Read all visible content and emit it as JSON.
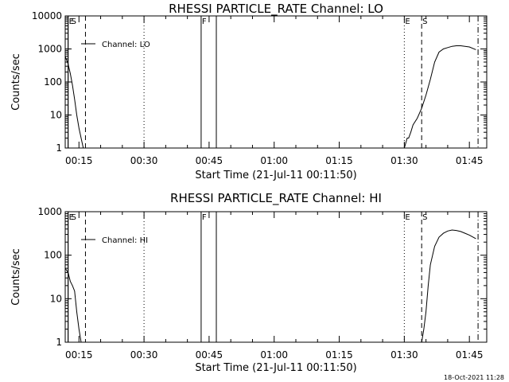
{
  "chart_data": [
    {
      "type": "line",
      "title": "RHESSI PARTICLE_RATE Channel: LO",
      "xlabel": "Start Time (21-Jul-11 00:11:50)",
      "ylabel": "Counts/sec",
      "yscale": "log",
      "xlim": [
        "00:11:50",
        "01:49:00"
      ],
      "ylim": [
        1,
        10000
      ],
      "x_ticks": [
        "00:15",
        "00:30",
        "00:45",
        "01:00",
        "01:15",
        "01:30",
        "01:45"
      ],
      "y_ticks": [
        "1",
        "10",
        "100",
        "1000",
        "10000"
      ],
      "legend": {
        "label": "Channel: LO",
        "placement": "top-left"
      },
      "series": [
        {
          "name": "Channel: LO",
          "x": [
            "00:11:50",
            "00:12:30",
            "00:13:00",
            "00:13:30",
            "00:14:00",
            "00:14:30",
            "00:15:00",
            "00:15:30",
            "00:16:00",
            "01:30:00",
            "01:30:40",
            "01:31:00",
            "01:31:30",
            "01:32:00",
            "01:33:00",
            "01:34:00",
            "01:35:00",
            "01:36:00",
            "01:37:00",
            "01:38:00",
            "01:39:00",
            "01:40:00",
            "01:41:00",
            "01:42:00",
            "01:43:00",
            "01:44:00",
            "01:45:00",
            "01:46:30"
          ],
          "y": [
            600,
            350,
            180,
            80,
            30,
            10,
            4,
            2,
            1,
            1,
            2,
            2,
            3,
            5,
            8,
            16,
            40,
            120,
            400,
            800,
            1000,
            1100,
            1200,
            1250,
            1250,
            1200,
            1150,
            950
          ]
        }
      ],
      "markers": [
        {
          "label": "E",
          "x": "00:12:30",
          "style": "solid"
        },
        {
          "label": "S",
          "x": "00:12:30",
          "style": "solid"
        },
        {
          "label": "",
          "x": "00:16:30",
          "style": "dashed"
        },
        {
          "label": "",
          "x": "00:30:00",
          "style": "dotted"
        },
        {
          "label": "F",
          "x": "00:43:10",
          "style": "solid"
        },
        {
          "label": "",
          "x": "00:46:40",
          "style": "solid"
        },
        {
          "label": "E",
          "x": "01:30:00",
          "style": "dotted"
        },
        {
          "label": "S",
          "x": "01:34:00",
          "style": "dashed"
        },
        {
          "label": "",
          "x": "01:47:00",
          "style": "dashdot"
        }
      ]
    },
    {
      "type": "line",
      "title": "RHESSI PARTICLE_RATE Channel: HI",
      "xlabel": "Start Time (21-Jul-11 00:11:50)",
      "ylabel": "Counts/sec",
      "yscale": "log",
      "xlim": [
        "00:11:50",
        "01:49:00"
      ],
      "ylim": [
        1,
        1000
      ],
      "x_ticks": [
        "00:15",
        "00:30",
        "00:45",
        "01:00",
        "01:15",
        "01:30",
        "01:45"
      ],
      "y_ticks": [
        "1",
        "10",
        "100",
        "1000"
      ],
      "legend": {
        "label": "Channel: HI",
        "placement": "top-left"
      },
      "series": [
        {
          "name": "Channel: HI",
          "x": [
            "00:11:50",
            "00:12:30",
            "00:13:00",
            "00:13:30",
            "00:14:00",
            "00:14:30",
            "00:15:00",
            "00:15:30",
            "00:16:00",
            "01:34:00",
            "01:34:30",
            "01:35:00",
            "01:35:30",
            "01:36:00",
            "01:37:00",
            "01:38:00",
            "01:39:00",
            "01:40:00",
            "01:41:00",
            "01:42:00",
            "01:43:00",
            "01:44:00",
            "01:45:00",
            "01:46:30"
          ],
          "y": [
            50,
            40,
            25,
            20,
            15,
            5,
            2,
            1,
            1,
            1,
            2,
            5,
            20,
            60,
            160,
            260,
            320,
            360,
            380,
            370,
            350,
            320,
            290,
            240
          ]
        }
      ],
      "markers": [
        {
          "label": "E",
          "x": "00:12:30",
          "style": "solid"
        },
        {
          "label": "S",
          "x": "00:12:30",
          "style": "solid"
        },
        {
          "label": "",
          "x": "00:16:30",
          "style": "dashed"
        },
        {
          "label": "",
          "x": "00:30:00",
          "style": "dotted"
        },
        {
          "label": "F",
          "x": "00:43:10",
          "style": "solid"
        },
        {
          "label": "",
          "x": "00:46:40",
          "style": "solid"
        },
        {
          "label": "E",
          "x": "01:30:00",
          "style": "dotted"
        },
        {
          "label": "S",
          "x": "01:34:00",
          "style": "dashed"
        },
        {
          "label": "",
          "x": "01:47:00",
          "style": "dashdot"
        }
      ]
    }
  ],
  "footer": {
    "timestamp": "18-Oct-2021 11:28"
  }
}
